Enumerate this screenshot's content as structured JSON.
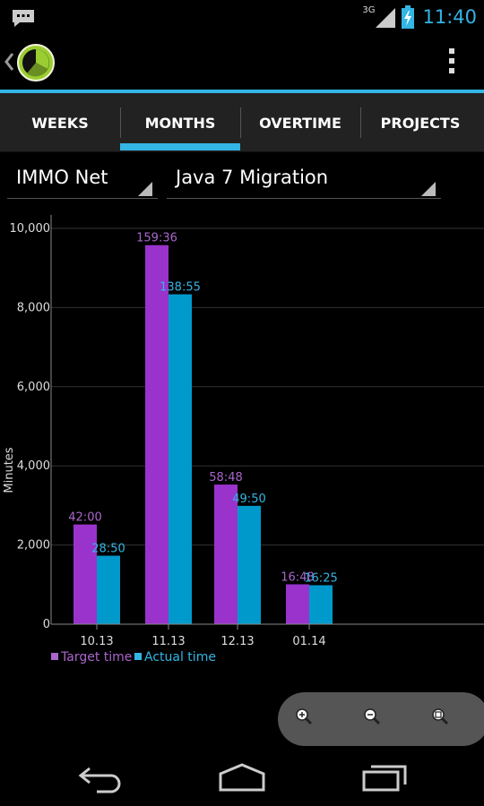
{
  "status_bar": {
    "network_label": "3G",
    "time": "11:40",
    "icons": [
      "message-icon",
      "signal-icon",
      "battery-charging-icon"
    ]
  },
  "action_bar": {
    "up_icon": "chevron-left-icon",
    "logo_icon": "clock-logo-icon",
    "overflow_icon": "overflow-menu-icon"
  },
  "tabs": [
    {
      "label": "WEEKS",
      "selected": false
    },
    {
      "label": "MONTHS",
      "selected": true
    },
    {
      "label": "OVERTIME",
      "selected": false
    },
    {
      "label": "PROJECTS",
      "selected": false
    }
  ],
  "filters": {
    "client": "IMMO Net",
    "project": "Java 7 Migration"
  },
  "colors": {
    "accent": "#33b5e5",
    "target": "#9933cc",
    "actual": "#0099cc",
    "target_label": "#aa66cc",
    "actual_label": "#33b5e5"
  },
  "chart_data": {
    "type": "bar",
    "title": "",
    "xlabel": "",
    "ylabel": "Minutes",
    "ylim": [
      0,
      10000
    ],
    "yticks": [
      0,
      2000,
      4000,
      6000,
      8000,
      10000
    ],
    "ytick_labels": [
      "0",
      "2,000",
      "4,000",
      "6,000",
      "8,000",
      "10,000"
    ],
    "categories": [
      "10.13",
      "11.13",
      "12.13",
      "01.14"
    ],
    "series": [
      {
        "name": "Target time",
        "values": [
          2520,
          9576,
          3528,
          1008
        ],
        "labels": [
          "42:00",
          "159:36",
          "58:48",
          "16:48"
        ]
      },
      {
        "name": "Actual time",
        "values": [
          1730,
          8335,
          2990,
          985
        ],
        "labels": [
          "28:50",
          "138:55",
          "49:50",
          "16:25"
        ]
      }
    ],
    "grid": true,
    "legend_position": "bottom-left"
  },
  "zoom": {
    "icons": [
      "zoom-in-icon",
      "zoom-out-icon",
      "zoom-reset-icon"
    ]
  },
  "nav_bar": {
    "icons": [
      "back-icon",
      "home-icon",
      "recent-apps-icon"
    ]
  }
}
